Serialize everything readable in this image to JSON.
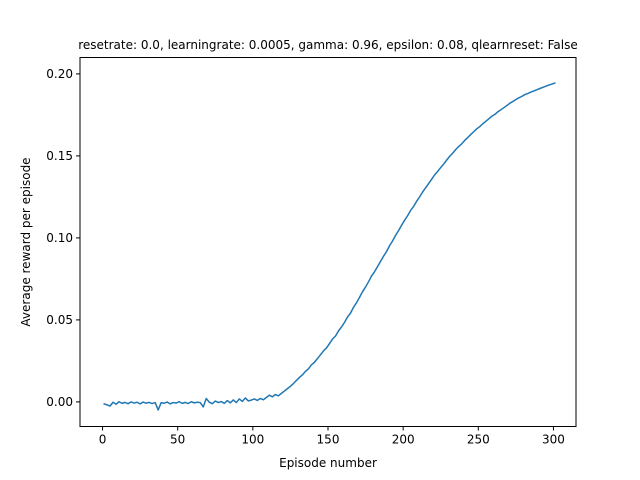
{
  "chart_data": {
    "type": "line",
    "title": "resetrate: 0.0, learningrate: 0.0005, gamma: 0.96, epsilon: 0.08, qlearnreset: False",
    "xlabel": "Episode number",
    "ylabel": "Average reward per episode",
    "xlim": [
      -15,
      315
    ],
    "ylim": [
      -0.015,
      0.21
    ],
    "x_ticks": [
      0,
      50,
      100,
      150,
      200,
      250,
      300
    ],
    "x_tick_labels": [
      "0",
      "50",
      "100",
      "150",
      "200",
      "250",
      "300"
    ],
    "y_ticks": [
      0.0,
      0.05,
      0.1,
      0.15,
      0.2
    ],
    "y_tick_labels": [
      "0.00",
      "0.05",
      "0.10",
      "0.15",
      "0.20"
    ],
    "grid": false,
    "legend": "none",
    "series": [
      {
        "color": "#1f77b4",
        "x": [
          1,
          3,
          5,
          7,
          9,
          11,
          13,
          15,
          17,
          19,
          21,
          23,
          25,
          27,
          29,
          31,
          33,
          35,
          37,
          39,
          41,
          43,
          45,
          47,
          49,
          51,
          53,
          55,
          57,
          59,
          61,
          63,
          65,
          67,
          69,
          71,
          73,
          75,
          77,
          79,
          81,
          83,
          85,
          87,
          89,
          91,
          93,
          95,
          97,
          99,
          101,
          103,
          105,
          107,
          109,
          111,
          113,
          115,
          117,
          119,
          121,
          123,
          125,
          127,
          129,
          131,
          133,
          135,
          137,
          139,
          141,
          143,
          145,
          147,
          149,
          151,
          153,
          155,
          157,
          159,
          161,
          163,
          165,
          167,
          169,
          171,
          173,
          175,
          177,
          179,
          181,
          183,
          185,
          187,
          189,
          191,
          193,
          195,
          197,
          199,
          201,
          203,
          205,
          207,
          209,
          211,
          213,
          215,
          217,
          219,
          221,
          223,
          225,
          227,
          229,
          231,
          233,
          235,
          237,
          239,
          241,
          243,
          245,
          247,
          249,
          251,
          253,
          255,
          257,
          259,
          261,
          263,
          265,
          267,
          269,
          271,
          273,
          275,
          277,
          279,
          281,
          283,
          285,
          287,
          289,
          291,
          293,
          295,
          297,
          299,
          301
        ],
        "y": [
          -0.0012,
          -0.0018,
          -0.0025,
          -0.0002,
          -0.0014,
          0.0001,
          -0.0009,
          -0.0003,
          -0.0011,
          0.0,
          -0.0007,
          -0.0002,
          -0.0012,
          -0.0001,
          -0.0008,
          -0.0003,
          -0.001,
          -0.0004,
          -0.0049,
          -0.0005,
          -0.0008,
          -0.0001,
          -0.0012,
          -0.0004,
          -0.0007,
          0.0001,
          -0.0009,
          -0.0003,
          -0.001,
          0.0001,
          -0.0006,
          -0.0002,
          -0.0004,
          -0.0031,
          0.0021,
          -0.0002,
          -0.0011,
          0.0005,
          -0.0004,
          0.0002,
          -0.0009,
          0.0008,
          -0.0006,
          0.0012,
          -0.0004,
          0.0018,
          0.0003,
          0.0024,
          0.0006,
          0.0011,
          0.0018,
          0.0009,
          0.0021,
          0.0013,
          0.0027,
          0.0041,
          0.0031,
          0.0045,
          0.0037,
          0.0052,
          0.0066,
          0.0081,
          0.0095,
          0.0112,
          0.0131,
          0.0149,
          0.0165,
          0.0186,
          0.0202,
          0.0226,
          0.0241,
          0.0265,
          0.0287,
          0.0311,
          0.0329,
          0.0356,
          0.0383,
          0.0402,
          0.0433,
          0.0457,
          0.0485,
          0.0518,
          0.0542,
          0.0577,
          0.0605,
          0.0638,
          0.0672,
          0.0701,
          0.0733,
          0.0768,
          0.0794,
          0.0826,
          0.0858,
          0.0889,
          0.0918,
          0.0953,
          0.0982,
          0.1016,
          0.1045,
          0.1078,
          0.1108,
          0.1136,
          0.1168,
          0.1192,
          0.1224,
          0.1251,
          0.128,
          0.1306,
          0.1332,
          0.1358,
          0.1385,
          0.1406,
          0.1429,
          0.1451,
          0.1475,
          0.1498,
          0.1517,
          0.1539,
          0.1558,
          0.1574,
          0.1595,
          0.1612,
          0.1631,
          0.1648,
          0.1665,
          0.1679,
          0.1696,
          0.1711,
          0.1726,
          0.1742,
          0.1753,
          0.1769,
          0.1781,
          0.1794,
          0.1807,
          0.1821,
          0.1832,
          0.1844,
          0.1854,
          0.1863,
          0.1874,
          0.1881,
          0.1889,
          0.1896,
          0.1904,
          0.1911,
          0.1918,
          0.1925,
          0.1932,
          0.1938,
          0.1944
        ]
      }
    ]
  }
}
